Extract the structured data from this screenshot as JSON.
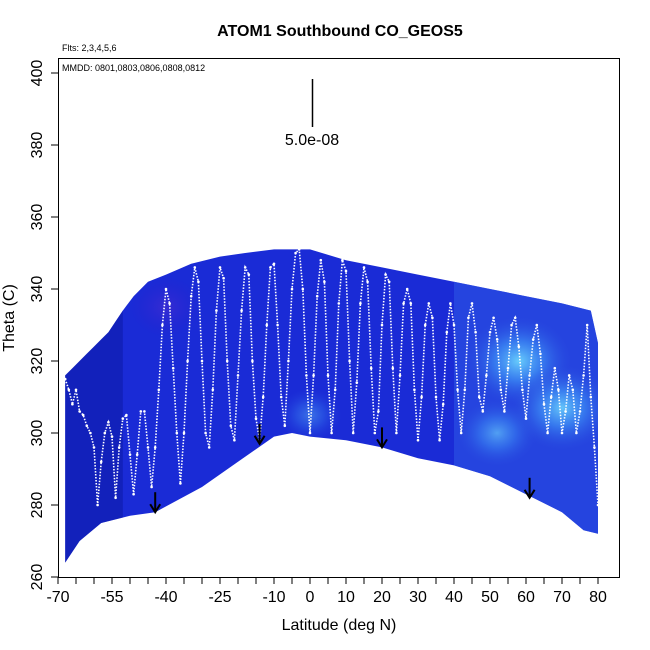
{
  "chart_data": {
    "type": "scatter",
    "title": "ATOM1 Southbound CO_GEOS5",
    "flights_note": "Flts: 2,3,4,5,6",
    "dates_note": "MMDD: 0801,0803,0806,0808,0812",
    "xlabel": "Latitude (deg N)",
    "ylabel": "Theta (C)",
    "xlim": [
      -70,
      85
    ],
    "ylim": [
      260,
      405
    ],
    "x_ticks": [
      -70,
      -55,
      -40,
      -25,
      -10,
      0,
      10,
      20,
      30,
      40,
      50,
      60,
      70,
      80
    ],
    "x_minor_ticks": [
      -65,
      -60,
      -50,
      -45,
      -35,
      -30,
      -20,
      -15,
      -5,
      5,
      15,
      25,
      35,
      45,
      55,
      65,
      75
    ],
    "y_ticks": [
      260,
      280,
      300,
      320,
      340,
      360,
      380,
      400
    ],
    "scale_bar_label": "5.0e-08",
    "arrows": [
      {
        "lat": -43,
        "theta": 278
      },
      {
        "lat": -14,
        "theta": 297
      },
      {
        "lat": 20,
        "theta": 296
      },
      {
        "lat": 61,
        "theta": 282
      }
    ],
    "curtain_top": [
      [
        -68,
        316
      ],
      [
        -66,
        318
      ],
      [
        -64,
        320
      ],
      [
        -62,
        322
      ],
      [
        -60,
        324
      ],
      [
        -58,
        326
      ],
      [
        -56,
        328
      ],
      [
        -54,
        331
      ],
      [
        -52,
        334
      ],
      [
        -49,
        338
      ],
      [
        -45,
        342
      ],
      [
        -40,
        344
      ],
      [
        -33,
        347
      ],
      [
        -25,
        349
      ],
      [
        -18,
        350
      ],
      [
        -10,
        351
      ],
      [
        0,
        351
      ],
      [
        10,
        348
      ],
      [
        20,
        346
      ],
      [
        30,
        344
      ],
      [
        40,
        342
      ],
      [
        50,
        340
      ],
      [
        60,
        338
      ],
      [
        70,
        336
      ],
      [
        78,
        334
      ],
      [
        80,
        325
      ]
    ],
    "curtain_bottom": [
      [
        -68,
        264
      ],
      [
        -64,
        270
      ],
      [
        -58,
        275
      ],
      [
        -50,
        277
      ],
      [
        -43,
        278
      ],
      [
        -30,
        285
      ],
      [
        -20,
        292
      ],
      [
        -10,
        299
      ],
      [
        -5,
        300
      ],
      [
        0,
        299
      ],
      [
        10,
        298
      ],
      [
        20,
        296
      ],
      [
        30,
        293
      ],
      [
        40,
        291
      ],
      [
        50,
        288
      ],
      [
        60,
        283
      ],
      [
        70,
        278
      ],
      [
        76,
        273
      ],
      [
        80,
        272
      ]
    ],
    "hotspots": [
      {
        "lat": 58,
        "theta": 320,
        "strength": 0.9
      },
      {
        "lat": 70,
        "theta": 307,
        "strength": 0.85
      },
      {
        "lat": 52,
        "theta": 300,
        "strength": 0.6
      },
      {
        "lat": -40,
        "theta": 335,
        "strength": 0.5
      },
      {
        "lat": 0,
        "theta": 305,
        "strength": 0.4
      }
    ],
    "flight_track": [
      [
        -68,
        315
      ],
      [
        -67,
        312
      ],
      [
        -66,
        308
      ],
      [
        -65,
        312
      ],
      [
        -64,
        306
      ],
      [
        -63,
        305
      ],
      [
        -62,
        302
      ],
      [
        -61,
        300
      ],
      [
        -60,
        296
      ],
      [
        -59,
        280
      ],
      [
        -58,
        292
      ],
      [
        -57,
        300
      ],
      [
        -56,
        303
      ],
      [
        -55,
        299
      ],
      [
        -54,
        282
      ],
      [
        -53,
        296
      ],
      [
        -52,
        304
      ],
      [
        -51,
        305
      ],
      [
        -50,
        294
      ],
      [
        -49,
        283
      ],
      [
        -48,
        294
      ],
      [
        -47,
        306
      ],
      [
        -46,
        306
      ],
      [
        -45,
        296
      ],
      [
        -44,
        285
      ],
      [
        -43,
        296
      ],
      [
        -42,
        312
      ],
      [
        -41,
        330
      ],
      [
        -40,
        340
      ],
      [
        -39,
        336
      ],
      [
        -38,
        318
      ],
      [
        -37,
        300
      ],
      [
        -36,
        286
      ],
      [
        -35,
        300
      ],
      [
        -34,
        320
      ],
      [
        -33,
        338
      ],
      [
        -32,
        346
      ],
      [
        -31,
        342
      ],
      [
        -30,
        320
      ],
      [
        -29,
        300
      ],
      [
        -28,
        296
      ],
      [
        -27,
        312
      ],
      [
        -26,
        334
      ],
      [
        -25,
        346
      ],
      [
        -24,
        343
      ],
      [
        -23,
        320
      ],
      [
        -22,
        302
      ],
      [
        -21,
        298
      ],
      [
        -20,
        316
      ],
      [
        -19,
        334
      ],
      [
        -18,
        346
      ],
      [
        -17,
        344
      ],
      [
        -16,
        320
      ],
      [
        -15,
        304
      ],
      [
        -14,
        298
      ],
      [
        -13,
        310
      ],
      [
        -12,
        330
      ],
      [
        -11,
        346
      ],
      [
        -10,
        347
      ],
      [
        -9,
        330
      ],
      [
        -8,
        310
      ],
      [
        -7,
        302
      ],
      [
        -6,
        320
      ],
      [
        -5,
        340
      ],
      [
        -4,
        350
      ],
      [
        -3,
        351
      ],
      [
        -2,
        340
      ],
      [
        -1,
        316
      ],
      [
        0,
        300
      ],
      [
        1,
        316
      ],
      [
        2,
        338
      ],
      [
        3,
        348
      ],
      [
        4,
        342
      ],
      [
        5,
        316
      ],
      [
        6,
        300
      ],
      [
        7,
        312
      ],
      [
        8,
        336
      ],
      [
        9,
        348
      ],
      [
        10,
        345
      ],
      [
        11,
        320
      ],
      [
        12,
        300
      ],
      [
        13,
        314
      ],
      [
        14,
        336
      ],
      [
        15,
        346
      ],
      [
        16,
        342
      ],
      [
        17,
        318
      ],
      [
        18,
        300
      ],
      [
        19,
        306
      ],
      [
        20,
        330
      ],
      [
        21,
        344
      ],
      [
        22,
        342
      ],
      [
        23,
        318
      ],
      [
        24,
        300
      ],
      [
        25,
        316
      ],
      [
        26,
        336
      ],
      [
        27,
        340
      ],
      [
        28,
        336
      ],
      [
        29,
        312
      ],
      [
        30,
        298
      ],
      [
        31,
        310
      ],
      [
        32,
        330
      ],
      [
        33,
        336
      ],
      [
        34,
        332
      ],
      [
        35,
        310
      ],
      [
        36,
        298
      ],
      [
        37,
        308
      ],
      [
        38,
        328
      ],
      [
        39,
        336
      ],
      [
        40,
        330
      ],
      [
        41,
        312
      ],
      [
        42,
        300
      ],
      [
        43,
        312
      ],
      [
        44,
        332
      ],
      [
        45,
        336
      ],
      [
        46,
        328
      ],
      [
        47,
        310
      ],
      [
        48,
        306
      ],
      [
        49,
        316
      ],
      [
        50,
        328
      ],
      [
        51,
        332
      ],
      [
        52,
        326
      ],
      [
        53,
        312
      ],
      [
        54,
        306
      ],
      [
        55,
        318
      ],
      [
        56,
        330
      ],
      [
        57,
        332
      ],
      [
        58,
        324
      ],
      [
        59,
        312
      ],
      [
        60,
        304
      ],
      [
        61,
        316
      ],
      [
        62,
        326
      ],
      [
        63,
        330
      ],
      [
        64,
        322
      ],
      [
        65,
        308
      ],
      [
        66,
        300
      ],
      [
        67,
        310
      ],
      [
        68,
        318
      ],
      [
        69,
        312
      ],
      [
        70,
        300
      ],
      [
        71,
        306
      ],
      [
        72,
        316
      ],
      [
        73,
        312
      ],
      [
        74,
        300
      ],
      [
        75,
        306
      ],
      [
        76,
        316
      ],
      [
        77,
        330
      ],
      [
        78,
        310
      ],
      [
        79,
        296
      ],
      [
        80,
        280
      ]
    ]
  }
}
